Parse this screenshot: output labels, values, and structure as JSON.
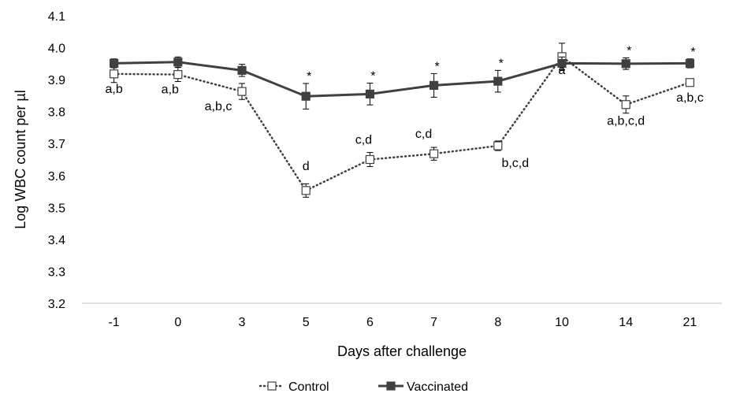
{
  "chart_data": {
    "type": "line",
    "title": "",
    "xlabel": "Days after challenge",
    "ylabel": "Log WBC count per µl",
    "categories": [
      "-1",
      "0",
      "3",
      "5",
      "6",
      "7",
      "8",
      "10",
      "14",
      "21"
    ],
    "ylim": [
      3.2,
      4.1
    ],
    "yticks": [
      "3.2",
      "3.3",
      "3.4",
      "3.5",
      "3.6",
      "3.7",
      "3.8",
      "3.9",
      "4.0",
      "4.1"
    ],
    "grid": false,
    "legend_position": "bottom",
    "series": [
      {
        "name": "Control",
        "style": "dotted",
        "marker": "open-square",
        "color": "#404040",
        "values": [
          3.918,
          3.916,
          3.863,
          3.553,
          3.65,
          3.668,
          3.693,
          3.972,
          3.822,
          3.891
        ],
        "errors": [
          0.027,
          0.022,
          0.025,
          0.021,
          0.022,
          0.02,
          0.015,
          0.042,
          0.027,
          0.01
        ],
        "annotations": [
          "a,b",
          "a,b",
          "a,b,c",
          "d",
          "c,d",
          "c,d",
          "b,c,d",
          "a",
          "a,b,c,d",
          "a,b,c"
        ]
      },
      {
        "name": "Vaccinated",
        "style": "solid",
        "marker": "filled-square",
        "color": "#404040",
        "values": [
          3.951,
          3.955,
          3.929,
          3.848,
          3.855,
          3.882,
          3.895,
          3.951,
          3.95,
          3.951
        ],
        "errors": [
          0.014,
          0.016,
          0.019,
          0.04,
          0.034,
          0.037,
          0.034,
          0.02,
          0.018,
          0.014
        ],
        "annotations": [
          "",
          "",
          "",
          "*",
          "*",
          "*",
          "*",
          "",
          "*",
          "*"
        ]
      }
    ]
  }
}
